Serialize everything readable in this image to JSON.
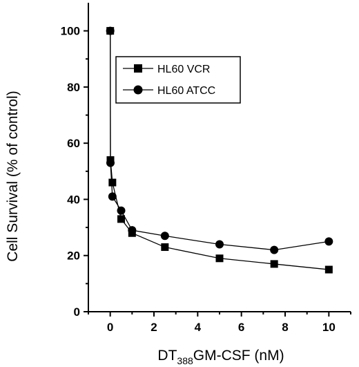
{
  "chart_data": {
    "type": "line",
    "xlabel_main": "DT",
    "xlabel_sub": "388",
    "xlabel_rest": "GM-CSF (nM)",
    "ylabel": "Cell Survival (% of control)",
    "xlim": [
      -1,
      11
    ],
    "ylim": [
      0,
      110
    ],
    "xticks": [
      0,
      2,
      4,
      6,
      8,
      10
    ],
    "yticks": [
      0,
      20,
      40,
      60,
      80,
      100
    ],
    "legend_position": "top-center",
    "series": [
      {
        "name": "HL60 VCR",
        "marker": "square",
        "x": [
          0,
          0.01,
          0.1,
          0.5,
          1,
          2.5,
          5,
          7.5,
          10
        ],
        "y": [
          100,
          54,
          46,
          33,
          28,
          23,
          19,
          17,
          15
        ]
      },
      {
        "name": "HL60 ATCC",
        "marker": "circle",
        "x": [
          0,
          0.01,
          0.1,
          0.5,
          1,
          2.5,
          5,
          7.5,
          10
        ],
        "y": [
          100,
          53,
          41,
          36,
          29,
          27,
          24,
          22,
          25
        ]
      }
    ]
  }
}
